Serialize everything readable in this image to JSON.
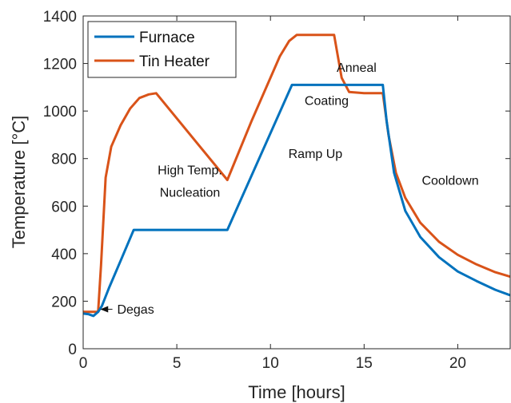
{
  "chart_data": {
    "type": "line",
    "xlabel": "Time [hours]",
    "ylabel": "Temperature [°C]",
    "xlim": [
      0,
      22.8
    ],
    "ylim": [
      0,
      1400
    ],
    "xticks": [
      0,
      5,
      10,
      15,
      20
    ],
    "yticks": [
      0,
      200,
      400,
      600,
      800,
      1000,
      1200,
      1400
    ],
    "grid": false,
    "legend_position": "top-left",
    "series": [
      {
        "name": "Furnace",
        "color": "#0072BD",
        "x": [
          0,
          0.3,
          0.55,
          0.8,
          1.0,
          1.4,
          2.0,
          2.7,
          3.2,
          5.0,
          7.7,
          11.15,
          13.0,
          16.0,
          16.2,
          16.6,
          17.2,
          18.0,
          19.0,
          20.0,
          21.0,
          22.0,
          22.8
        ],
        "y": [
          148,
          145,
          138,
          155,
          180,
          260,
          370,
          500,
          500,
          500,
          500,
          1110,
          1110,
          1110,
          960,
          740,
          580,
          470,
          385,
          325,
          285,
          248,
          225
        ]
      },
      {
        "name": "Tin Heater",
        "color": "#D95319",
        "x": [
          0,
          0.5,
          0.8,
          0.95,
          1.2,
          1.5,
          2.0,
          2.5,
          3.0,
          3.5,
          3.9,
          7.7,
          9.0,
          10.5,
          11.0,
          11.4,
          12.0,
          13.4,
          13.8,
          14.2,
          15.0,
          16.0,
          16.3,
          16.7,
          17.2,
          18.0,
          19.0,
          20.0,
          21.0,
          22.0,
          22.8
        ],
        "y": [
          155,
          155,
          155,
          350,
          720,
          850,
          940,
          1010,
          1055,
          1070,
          1075,
          710,
          960,
          1230,
          1295,
          1320,
          1320,
          1320,
          1140,
          1080,
          1075,
          1075,
          900,
          740,
          635,
          530,
          450,
          395,
          355,
          322,
          303
        ]
      }
    ],
    "annotations": [
      {
        "text": "High Temp.",
        "x": 5.7,
        "y": 733
      },
      {
        "text": "Nucleation",
        "x": 5.7,
        "y": 640
      },
      {
        "text": "Ramp Up",
        "x": 12.4,
        "y": 803
      },
      {
        "text": "Coating",
        "x": 13.0,
        "y": 1025
      },
      {
        "text": "Anneal",
        "x": 14.6,
        "y": 1165
      },
      {
        "text": "Cooldown",
        "x": 19.6,
        "y": 690
      },
      {
        "text": "Degas",
        "x": 2.8,
        "y": 148,
        "arrow_to_x": 0.95,
        "arrow_to_y": 166
      }
    ]
  }
}
